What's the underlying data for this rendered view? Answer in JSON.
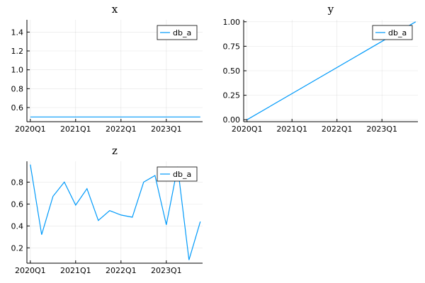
{
  "chart_data": [
    {
      "type": "line",
      "title": "x",
      "x_tick_labels": [
        "2020Q1",
        "2021Q1",
        "2022Q1",
        "2023Q1"
      ],
      "x_tick_values": [
        0,
        4,
        8,
        12
      ],
      "xlim": [
        -0.3,
        15.2
      ],
      "ylim": [
        0.45,
        1.53
      ],
      "y_ticks": [
        0.6,
        0.8,
        1.0,
        1.2,
        1.4
      ],
      "y_tick_labels": [
        "0.6",
        "0.8",
        "1.0",
        "1.2",
        "1.4"
      ],
      "legend": "top-right",
      "series": [
        {
          "name": "db_a",
          "color": "#009AFA",
          "x": [
            0,
            15
          ],
          "y": [
            0.5,
            0.5
          ]
        }
      ]
    },
    {
      "type": "line",
      "title": "y",
      "x_tick_labels": [
        "2020Q1",
        "2021Q1",
        "2022Q1",
        "2023Q1"
      ],
      "x_tick_values": [
        0,
        4,
        8,
        12
      ],
      "xlim": [
        -0.3,
        15.2
      ],
      "ylim": [
        -0.02,
        1.02
      ],
      "y_ticks": [
        0.0,
        0.25,
        0.5,
        0.75,
        1.0
      ],
      "y_tick_labels": [
        "0.00",
        "0.25",
        "0.50",
        "0.75",
        "1.00"
      ],
      "legend": "top-right",
      "series": [
        {
          "name": "db_a",
          "color": "#009AFA",
          "x": [
            0,
            15
          ],
          "y": [
            0.0,
            1.0
          ]
        }
      ]
    },
    {
      "type": "line",
      "title": "z",
      "x_tick_labels": [
        "2020Q1",
        "2021Q1",
        "2022Q1",
        "2023Q1"
      ],
      "x_tick_values": [
        0,
        4,
        8,
        12
      ],
      "xlim": [
        -0.3,
        15.2
      ],
      "ylim": [
        0.06,
        0.99
      ],
      "y_ticks": [
        0.2,
        0.4,
        0.6,
        0.8
      ],
      "y_tick_labels": [
        "0.2",
        "0.4",
        "0.6",
        "0.8"
      ],
      "legend": "top-right",
      "series": [
        {
          "name": "db_a",
          "color": "#009AFA",
          "x": [
            0,
            1,
            2,
            3,
            4,
            5,
            6,
            7,
            8,
            9,
            10,
            11,
            12,
            13,
            14,
            15
          ],
          "y": [
            0.96,
            0.32,
            0.67,
            0.8,
            0.59,
            0.74,
            0.45,
            0.54,
            0.5,
            0.48,
            0.8,
            0.86,
            0.41,
            0.94,
            0.09,
            0.44
          ]
        }
      ]
    }
  ]
}
